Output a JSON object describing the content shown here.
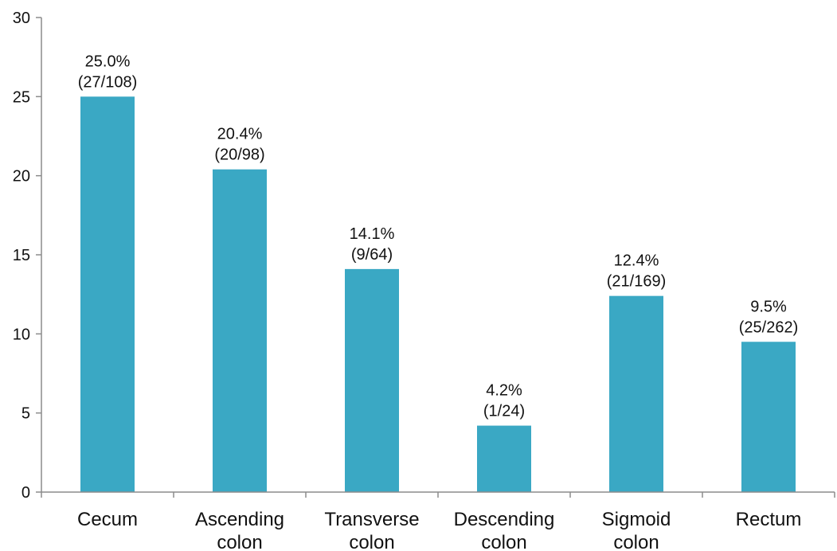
{
  "chart_data": {
    "type": "bar",
    "categories": [
      [
        "Cecum"
      ],
      [
        "Ascending",
        "colon"
      ],
      [
        "Transverse",
        "colon"
      ],
      [
        "Descending",
        "colon"
      ],
      [
        "Sigmoid",
        "colon"
      ],
      [
        "Rectum"
      ]
    ],
    "values": [
      25.0,
      20.4,
      14.1,
      4.2,
      12.4,
      9.5
    ],
    "data_labels": [
      [
        "25.0%",
        "(27/108)"
      ],
      [
        "20.4%",
        "(20/98)"
      ],
      [
        "14.1%",
        "(9/64)"
      ],
      [
        "4.2%",
        "(1/24)"
      ],
      [
        "12.4%",
        "(21/169)"
      ],
      [
        "9.5%",
        "(25/262)"
      ]
    ],
    "yticks": [
      "0",
      "5",
      "10",
      "15",
      "20",
      "25",
      "30"
    ],
    "ylim": [
      0,
      30
    ],
    "grid": false,
    "legend": "none",
    "bar_color": "#3aa8c4",
    "axis_color": "#8c8c8c"
  }
}
